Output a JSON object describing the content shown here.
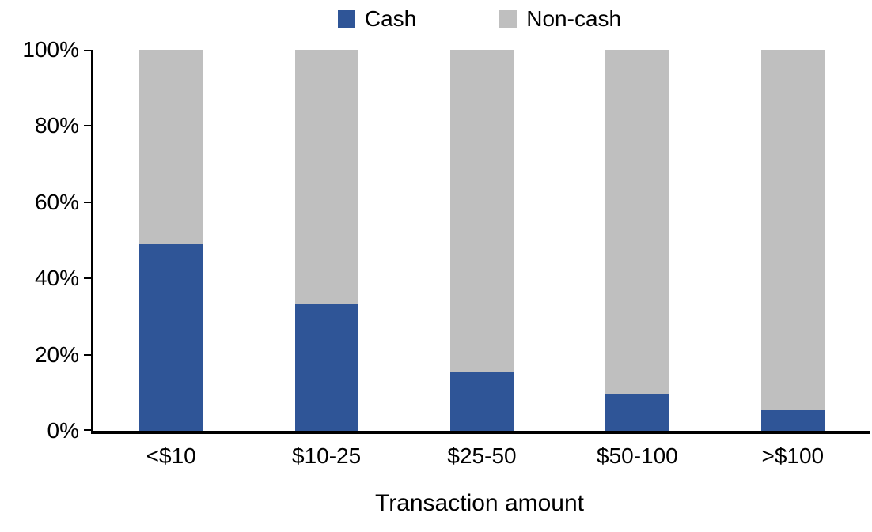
{
  "chart_data": {
    "type": "bar",
    "stacked": true,
    "percent_stacked": true,
    "title": "",
    "xlabel": "Transaction amount",
    "ylabel": "",
    "categories": [
      "<$10",
      "$10-25",
      "$25-50",
      "$50-100",
      ">$100"
    ],
    "series": [
      {
        "name": "Cash",
        "color": "#2F5597",
        "values": [
          49,
          33.5,
          15.5,
          9.5,
          5.5
        ]
      },
      {
        "name": "Non-cash",
        "color": "#BFBFBF",
        "values": [
          51,
          66.5,
          84.5,
          90.5,
          94.5
        ]
      }
    ],
    "ylim": [
      0,
      100
    ],
    "ytick_interval": 20,
    "ytick_labels": [
      "0%",
      "20%",
      "40%",
      "60%",
      "80%",
      "100%"
    ],
    "grid": false,
    "legend_position": "top-center",
    "axis_color": "#000000",
    "background_color": "#FFFFFF"
  }
}
